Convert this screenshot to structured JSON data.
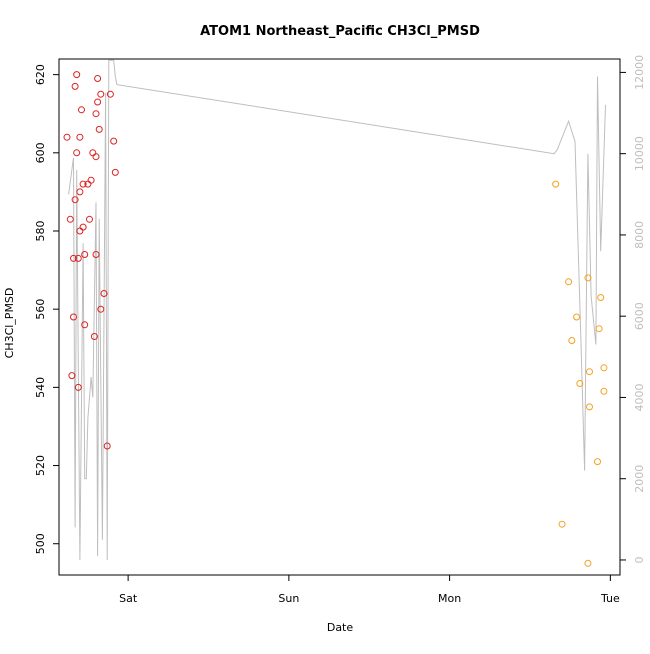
{
  "chart_data": {
    "type": "scatter",
    "title": "ATOM1 Northeast_Pacific CH3Cl_PMSD",
    "xlabel": "Date",
    "ylabel": "CH3Cl_PMSD",
    "x_ticks": [
      "Sat",
      "Sun",
      "Mon",
      "Tue"
    ],
    "x_tick_values": [
      1.0,
      2.0,
      3.0,
      4.0
    ],
    "xlim": [
      0.57,
      4.06
    ],
    "ylim": [
      492,
      624
    ],
    "y_ticks": [
      500,
      520,
      540,
      560,
      580,
      600,
      620
    ],
    "y2lim": [
      -370,
      12330
    ],
    "y2_ticks": [
      0,
      2000,
      4000,
      6000,
      8000,
      10000,
      12000
    ],
    "grid": false,
    "legend": "none",
    "colors": {
      "series_a": "#dd2222",
      "series_b": "#f5a020",
      "line": "#bebebe"
    },
    "series": [
      {
        "color": "#dd2222",
        "points": [
          [
            0.62,
            604
          ],
          [
            0.64,
            583
          ],
          [
            0.65,
            543
          ],
          [
            0.66,
            573
          ],
          [
            0.66,
            558
          ],
          [
            0.67,
            588
          ],
          [
            0.67,
            617
          ],
          [
            0.68,
            620
          ],
          [
            0.68,
            600
          ],
          [
            0.69,
            573
          ],
          [
            0.69,
            540
          ],
          [
            0.7,
            604
          ],
          [
            0.7,
            590
          ],
          [
            0.7,
            580
          ],
          [
            0.71,
            611
          ],
          [
            0.72,
            581
          ],
          [
            0.72,
            592
          ],
          [
            0.73,
            574
          ],
          [
            0.73,
            556
          ],
          [
            0.75,
            592
          ],
          [
            0.76,
            583
          ],
          [
            0.77,
            593
          ],
          [
            0.78,
            600
          ],
          [
            0.79,
            553
          ],
          [
            0.8,
            574
          ],
          [
            0.8,
            610
          ],
          [
            0.8,
            599
          ],
          [
            0.81,
            619
          ],
          [
            0.81,
            613
          ],
          [
            0.82,
            606
          ],
          [
            0.83,
            615
          ],
          [
            0.83,
            560
          ],
          [
            0.85,
            564
          ],
          [
            0.87,
            525
          ],
          [
            0.89,
            615
          ],
          [
            0.91,
            603
          ],
          [
            0.92,
            595
          ]
        ]
      },
      {
        "color": "#f5a020",
        "points": [
          [
            3.66,
            592
          ],
          [
            3.7,
            505
          ],
          [
            3.74,
            567
          ],
          [
            3.76,
            552
          ],
          [
            3.79,
            558
          ],
          [
            3.81,
            541
          ],
          [
            3.86,
            495
          ],
          [
            3.86,
            568
          ],
          [
            3.87,
            535
          ],
          [
            3.87,
            544
          ],
          [
            3.92,
            521
          ],
          [
            3.93,
            555
          ],
          [
            3.94,
            563
          ],
          [
            3.96,
            539
          ],
          [
            3.96,
            545
          ]
        ]
      }
    ],
    "line_series": {
      "axis": "right",
      "color": "#bebebe",
      "points": [
        [
          0.63,
          9000
        ],
        [
          0.66,
          9900
        ],
        [
          0.67,
          800
        ],
        [
          0.68,
          9600
        ],
        [
          0.7,
          0
        ],
        [
          0.72,
          7800
        ],
        [
          0.73,
          2000
        ],
        [
          0.74,
          2000
        ],
        [
          0.75,
          3500
        ],
        [
          0.77,
          4500
        ],
        [
          0.78,
          4000
        ],
        [
          0.8,
          8800
        ],
        [
          0.81,
          100
        ],
        [
          0.82,
          8400
        ],
        [
          0.84,
          500
        ],
        [
          0.86,
          11500
        ],
        [
          0.87,
          0
        ],
        [
          0.88,
          12300
        ],
        [
          0.91,
          12300
        ],
        [
          0.92,
          11900
        ],
        [
          0.93,
          11700
        ],
        [
          3.65,
          10000
        ],
        [
          3.67,
          10100
        ],
        [
          3.7,
          10400
        ],
        [
          3.74,
          10800
        ],
        [
          3.78,
          10300
        ],
        [
          3.82,
          5000
        ],
        [
          3.84,
          2200
        ],
        [
          3.86,
          10000
        ],
        [
          3.88,
          6500
        ],
        [
          3.91,
          5300
        ],
        [
          3.92,
          11900
        ],
        [
          3.94,
          7600
        ],
        [
          3.97,
          11200
        ]
      ]
    }
  }
}
